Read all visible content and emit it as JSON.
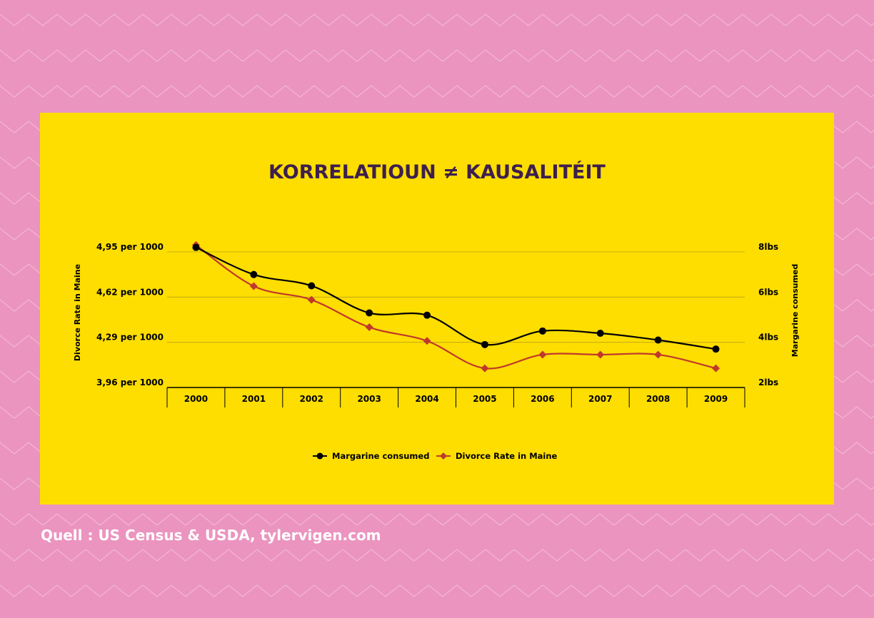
{
  "chart_data": {
    "type": "line",
    "title": "KORRELATIOUN ≠ KAUSALITÉIT",
    "categories": [
      "2000",
      "2001",
      "2002",
      "2003",
      "2004",
      "2005",
      "2006",
      "2007",
      "2008",
      "2009"
    ],
    "y_left": {
      "label": "Divorce Rate in Maine",
      "ticks": [
        "3,96 per 1000",
        "4,29 per 1000",
        "4,62 per 1000",
        "4,95 per 1000"
      ],
      "range": [
        3.96,
        4.95
      ]
    },
    "y_right": {
      "label": "Margarine consumed",
      "ticks": [
        "2lbs",
        "4lbs",
        "6lbs",
        "8lbs"
      ],
      "range": [
        2,
        8
      ]
    },
    "series": [
      {
        "name": "Margarine consumed",
        "axis": "right",
        "color": "#000000",
        "marker": "circle",
        "values": [
          8.2,
          7.0,
          6.5,
          5.3,
          5.2,
          3.9,
          4.5,
          4.4,
          4.1,
          3.7
        ]
      },
      {
        "name": "Divorce Rate in Maine",
        "axis": "left",
        "color": "#c0392b",
        "marker": "diamond",
        "values": [
          5.0,
          4.7,
          4.6,
          4.4,
          4.3,
          4.1,
          4.2,
          4.2,
          4.2,
          4.1
        ]
      }
    ],
    "grid": true,
    "legend": "bottom-center"
  },
  "source": "Quell : US Census & USDA, tylervigen.com",
  "colors": {
    "background": "#eb94bf",
    "panel": "#fede00",
    "title": "#3d1f4d"
  }
}
